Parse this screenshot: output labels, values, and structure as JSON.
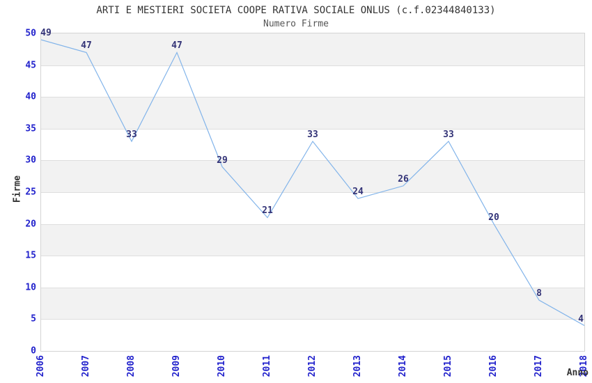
{
  "header": {
    "title": "ARTI E MESTIERI SOCIETA COOPE RATIVA SOCIALE ONLUS (c.f.02344840133)",
    "subtitle": "Numero Firme"
  },
  "chart_data": {
    "type": "line",
    "title": "ARTI E MESTIERI SOCIETA COOPE RATIVA SOCIALE ONLUS (c.f.02344840133)",
    "subtitle": "Numero Firme",
    "xlabel": "Anno",
    "ylabel": "Firme",
    "x": [
      2006,
      2007,
      2008,
      2009,
      2010,
      2011,
      2012,
      2013,
      2014,
      2015,
      2016,
      2017,
      2018
    ],
    "series": [
      {
        "name": "Numero Firme",
        "values": [
          49,
          47,
          33,
          47,
          29,
          21,
          33,
          24,
          26,
          33,
          20,
          8,
          4
        ]
      }
    ],
    "point_labels_visible": true,
    "ylim": [
      0,
      50
    ],
    "ytick_step": 5,
    "yticks": [
      0,
      5,
      10,
      15,
      20,
      25,
      30,
      35,
      40,
      45,
      50
    ],
    "grid": "horizontal gridlines with alternating shaded bands",
    "legend": "none"
  },
  "colors": {
    "line": "#82B4EA",
    "tick_label": "#2222CC",
    "point_label": "#333377",
    "band": "#F2F2F2",
    "grid": "#DEDEDE",
    "border": "#D4D4D4",
    "title_color": "#333333",
    "subtitle_color": "#555555",
    "axis_title": "#333333"
  }
}
